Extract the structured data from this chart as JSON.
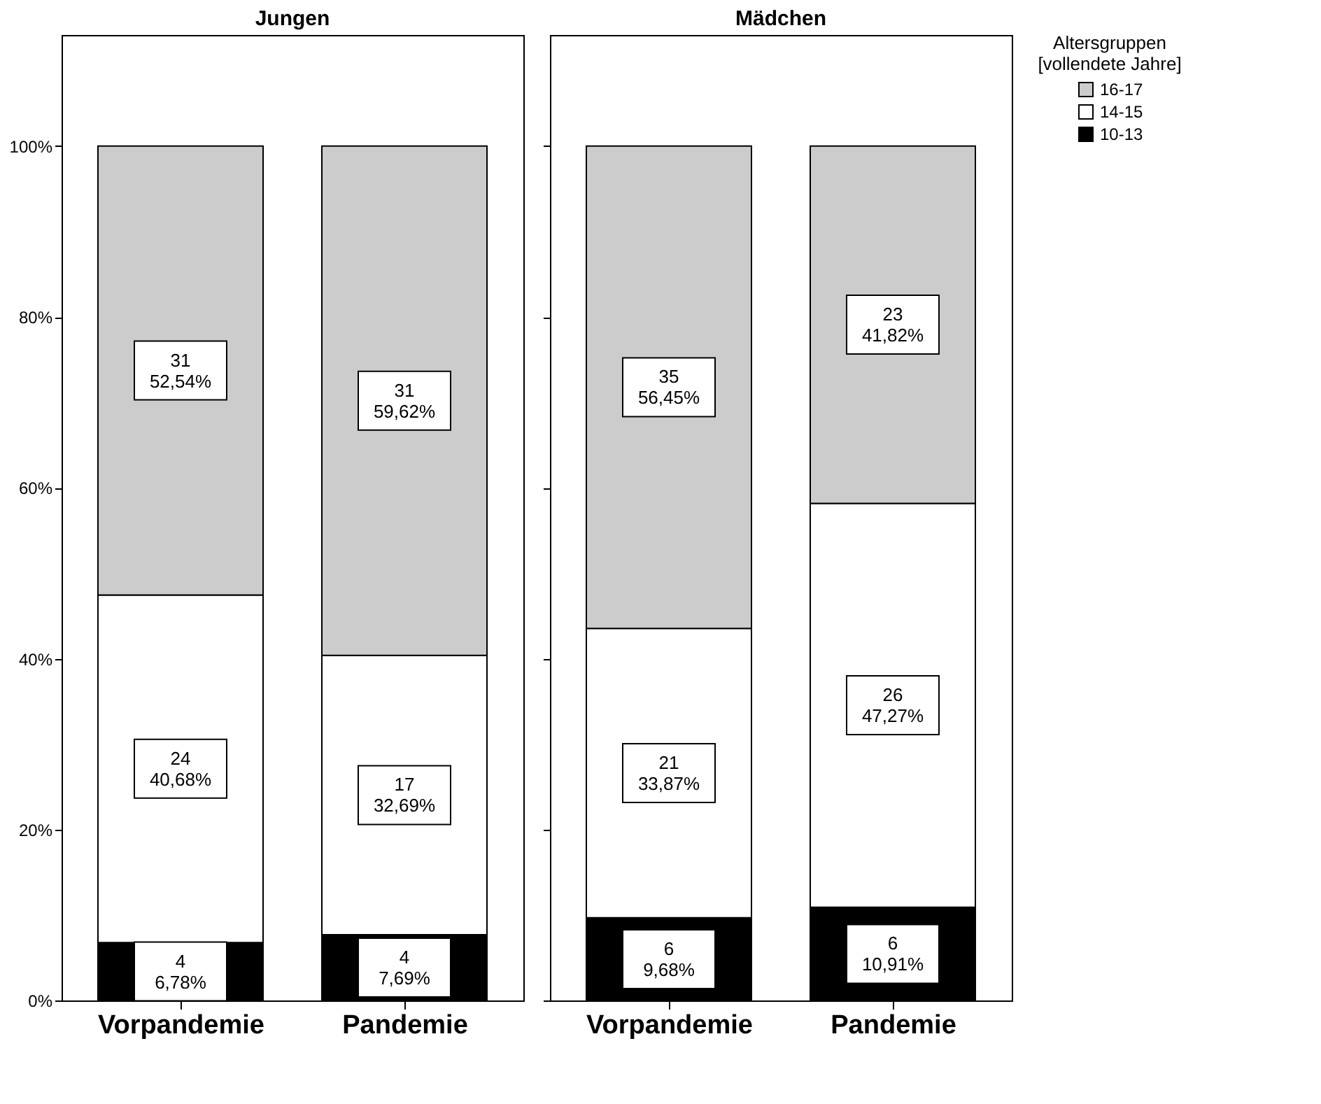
{
  "chart_data": [
    {
      "type": "bar",
      "title": "Jungen",
      "stacked": true,
      "categories": [
        "Vorpandemie",
        "Pandemie"
      ],
      "ylim": [
        0,
        113
      ],
      "yticks": [
        {
          "value": 0,
          "label": "0%"
        },
        {
          "value": 20,
          "label": "20%"
        },
        {
          "value": 40,
          "label": "40%"
        },
        {
          "value": 60,
          "label": "60%"
        },
        {
          "value": 80,
          "label": "80%"
        },
        {
          "value": 100,
          "label": "100%"
        }
      ],
      "grid": false,
      "legend": "top right",
      "series": [
        {
          "name": "10-13",
          "color": "#000000",
          "values": [
            6.78,
            7.69
          ],
          "value_labels": [
            "4\n6,78%",
            "4\n7,69%"
          ]
        },
        {
          "name": "14-15",
          "color": "#ffffff",
          "values": [
            40.68,
            32.69
          ],
          "value_labels": [
            "24\n40,68%",
            "17\n32,69%"
          ]
        },
        {
          "name": "16-17",
          "color": "#cccccc",
          "values": [
            52.54,
            59.62
          ],
          "value_labels": [
            "31\n52,54%",
            "31\n59,62%"
          ]
        }
      ]
    },
    {
      "type": "bar",
      "title": "Mädchen",
      "stacked": true,
      "categories": [
        "Vorpandemie",
        "Pandemie"
      ],
      "ylim": [
        0,
        113
      ],
      "yticks": [
        0,
        20,
        40,
        60,
        80,
        100
      ],
      "tick_labels": "x",
      "grid": false,
      "legend": "top right",
      "legend_title": "Altersgruppen\n[vollendete Jahre]",
      "series": [
        {
          "name": "10-13",
          "color": "#000000",
          "values": [
            9.68,
            10.91
          ],
          "value_labels": [
            "6\n9,68%",
            "6\n10,91%"
          ]
        },
        {
          "name": "14-15",
          "color": "#ffffff",
          "values": [
            33.87,
            47.27
          ],
          "value_labels": [
            "21\n33,87%",
            "26\n47,27%"
          ]
        },
        {
          "name": "16-17",
          "color": "#cccccc",
          "values": [
            56.45,
            41.82
          ],
          "value_labels": [
            "35\n56,45%",
            "23\n41,82%"
          ]
        }
      ]
    }
  ]
}
